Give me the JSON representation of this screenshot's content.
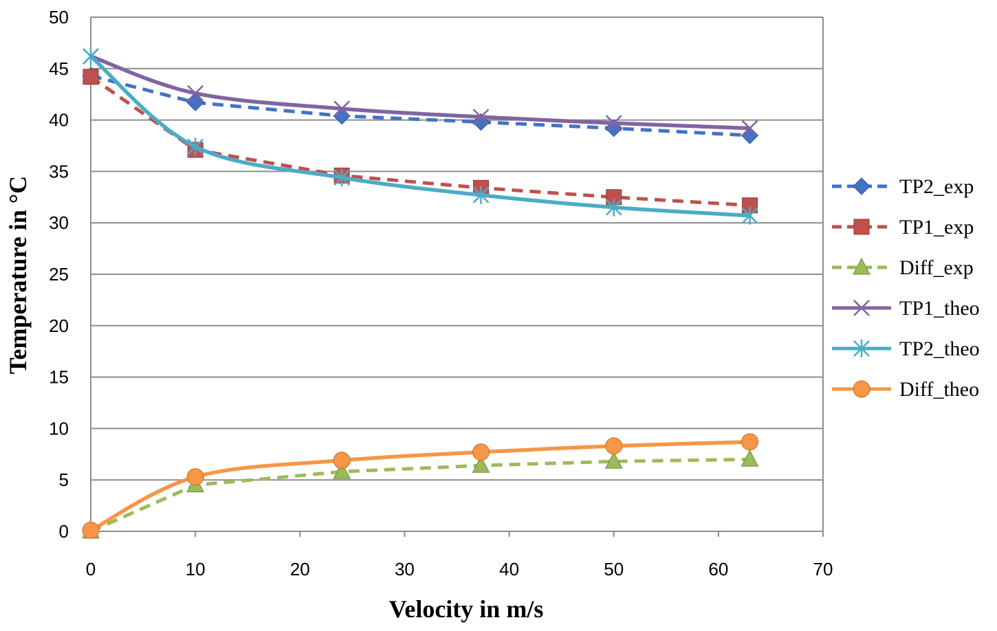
{
  "chart_data": {
    "type": "line",
    "xlabel": "Velocity in m/s",
    "ylabel": "Temperature in °C",
    "xlim": [
      0,
      70
    ],
    "ylim": [
      0,
      50
    ],
    "xticks": [
      0,
      10,
      20,
      30,
      40,
      50,
      60,
      70
    ],
    "yticks": [
      0,
      5,
      10,
      15,
      20,
      25,
      30,
      35,
      40,
      45,
      50
    ],
    "grid": "horizontal",
    "legend_position": "right",
    "series": [
      {
        "name": "TP2_exp",
        "color": "#4472C4",
        "dash": "dashed",
        "marker": "diamond",
        "smooth": false,
        "x": [
          0,
          10,
          24,
          37.3,
          50,
          63
        ],
        "y": [
          44.3,
          41.7,
          40.4,
          39.8,
          39.2,
          38.5
        ]
      },
      {
        "name": "TP1_exp",
        "color": "#C0504D",
        "dash": "dashed",
        "marker": "square",
        "smooth": false,
        "x": [
          0,
          10,
          24,
          37.3,
          50,
          63
        ],
        "y": [
          44.2,
          37.1,
          34.6,
          33.4,
          32.5,
          31.7
        ]
      },
      {
        "name": "Diff_exp",
        "color": "#9BBB59",
        "dash": "dashed",
        "marker": "triangle",
        "smooth": false,
        "x": [
          0,
          10,
          24,
          37.3,
          50,
          63
        ],
        "y": [
          0,
          4.5,
          5.8,
          6.4,
          6.8,
          7.0
        ]
      },
      {
        "name": "TP1_theo",
        "color": "#8064A2",
        "dash": "solid",
        "marker": "x",
        "smooth": true,
        "x": [
          0,
          10,
          24,
          37.3,
          50,
          63
        ],
        "y": [
          46.2,
          42.6,
          41.1,
          40.3,
          39.7,
          39.2
        ]
      },
      {
        "name": "TP2_theo",
        "color": "#4BACC6",
        "dash": "solid",
        "marker": "star",
        "smooth": true,
        "x": [
          0,
          10,
          24,
          37.3,
          50,
          63
        ],
        "y": [
          46.2,
          37.4,
          34.4,
          32.7,
          31.5,
          30.7
        ]
      },
      {
        "name": "Diff_theo",
        "color": "#F79646",
        "dash": "solid",
        "marker": "circle",
        "smooth": true,
        "x": [
          0,
          10,
          24,
          37.3,
          50,
          63
        ],
        "y": [
          0.1,
          5.3,
          6.9,
          7.7,
          8.3,
          8.7
        ]
      }
    ]
  }
}
